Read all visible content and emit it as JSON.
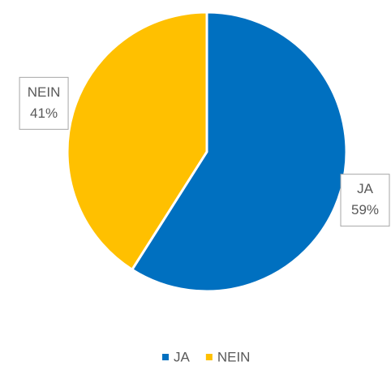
{
  "chart_data": {
    "type": "pie",
    "categories": [
      "JA",
      "NEIN"
    ],
    "values": [
      59,
      41
    ],
    "value_labels": [
      "59%",
      "41%"
    ],
    "colors": [
      "#0070C0",
      "#FFC000"
    ],
    "legend": "bottom"
  }
}
